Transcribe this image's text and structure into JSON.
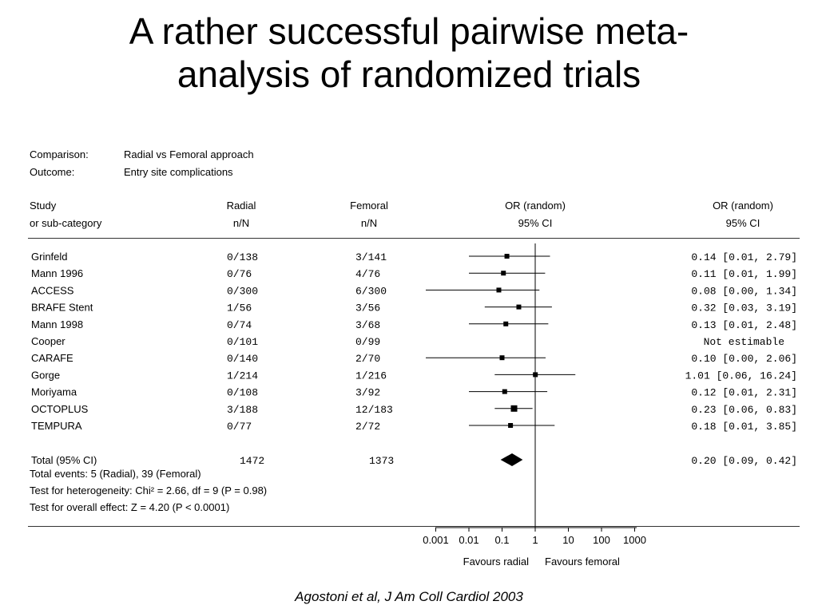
{
  "slide": {
    "title_line1": "A rather successful pairwise meta-",
    "title_line2": "analysis of randomized trials",
    "citation": "Agostoni et al, J Am Coll Cardiol 2003"
  },
  "meta": {
    "comparison_label": "Comparison:",
    "comparison_value": "Radial vs Femoral approach",
    "outcome_label": "Outcome:",
    "outcome_value": "Entry site complications"
  },
  "headers": {
    "study_1": "Study",
    "study_2": "or sub-category",
    "radial_1": "Radial",
    "radial_2": "n/N",
    "femoral_1": "Femoral",
    "femoral_2": "n/N",
    "plot_1": "OR (random)",
    "plot_2": "95% CI",
    "or_1": "OR (random)",
    "or_2": "95% CI"
  },
  "chart_data": {
    "type": "forest",
    "x_scale": "log",
    "x_ticks": [
      0.001,
      0.01,
      0.1,
      1,
      10,
      100,
      1000
    ],
    "x_tick_labels": [
      "0.001",
      "0.01",
      "0.1",
      "1",
      "10",
      "100",
      "1000"
    ],
    "xlim": [
      0.001,
      1000
    ],
    "x_label_left": "Favours radial",
    "x_label_right": "Favours femoral",
    "studies": [
      {
        "name": "Grinfeld",
        "radial": "0/138",
        "femoral": "3/141",
        "or": 0.14,
        "lo": 0.01,
        "hi": 2.79,
        "or_text": "0.14 [0.01, 2.79]"
      },
      {
        "name": "Mann 1996",
        "radial": "0/76",
        "femoral": "4/76",
        "or": 0.11,
        "lo": 0.01,
        "hi": 1.99,
        "or_text": "0.11 [0.01, 1.99]"
      },
      {
        "name": "ACCESS",
        "radial": "0/300",
        "femoral": "6/300",
        "or": 0.08,
        "lo": 0.0,
        "hi": 1.34,
        "or_text": "0.08 [0.00, 1.34]"
      },
      {
        "name": "BRAFE Stent",
        "radial": "1/56",
        "femoral": "3/56",
        "or": 0.32,
        "lo": 0.03,
        "hi": 3.19,
        "or_text": "0.32 [0.03, 3.19]"
      },
      {
        "name": "Mann 1998",
        "radial": "0/74",
        "femoral": "3/68",
        "or": 0.13,
        "lo": 0.01,
        "hi": 2.48,
        "or_text": "0.13 [0.01, 2.48]"
      },
      {
        "name": "Cooper",
        "radial": "0/101",
        "femoral": "0/99",
        "or": null,
        "lo": null,
        "hi": null,
        "or_text": "Not estimable"
      },
      {
        "name": "CARAFE",
        "radial": "0/140",
        "femoral": "2/70",
        "or": 0.1,
        "lo": 0.0,
        "hi": 2.06,
        "or_text": "0.10 [0.00, 2.06]"
      },
      {
        "name": "Gorge",
        "radial": "1/214",
        "femoral": "1/216",
        "or": 1.01,
        "lo": 0.06,
        "hi": 16.24,
        "or_text": "1.01 [0.06, 16.24]"
      },
      {
        "name": "Moriyama",
        "radial": "0/108",
        "femoral": "3/92",
        "or": 0.12,
        "lo": 0.01,
        "hi": 2.31,
        "or_text": "0.12 [0.01, 2.31]"
      },
      {
        "name": "OCTOPLUS",
        "radial": "3/188",
        "femoral": "12/183",
        "or": 0.23,
        "lo": 0.06,
        "hi": 0.83,
        "or_text": "0.23 [0.06, 0.83]"
      },
      {
        "name": "TEMPURA",
        "radial": "0/77",
        "femoral": "2/72",
        "or": 0.18,
        "lo": 0.01,
        "hi": 3.85,
        "or_text": "0.18 [0.01, 3.85]"
      }
    ],
    "total": {
      "name": "Total (95% CI)",
      "radial": "1472",
      "femoral": "1373",
      "or": 0.2,
      "lo": 0.09,
      "hi": 0.42,
      "or_text": "0.20 [0.09, 0.42]"
    },
    "footnotes": [
      "Total events: 5 (Radial), 39 (Femoral)",
      "Test for heterogeneity: Chi² = 2.66, df = 9 (P = 0.98)",
      "Test for overall effect: Z = 4.20 (P < 0.0001)"
    ]
  }
}
